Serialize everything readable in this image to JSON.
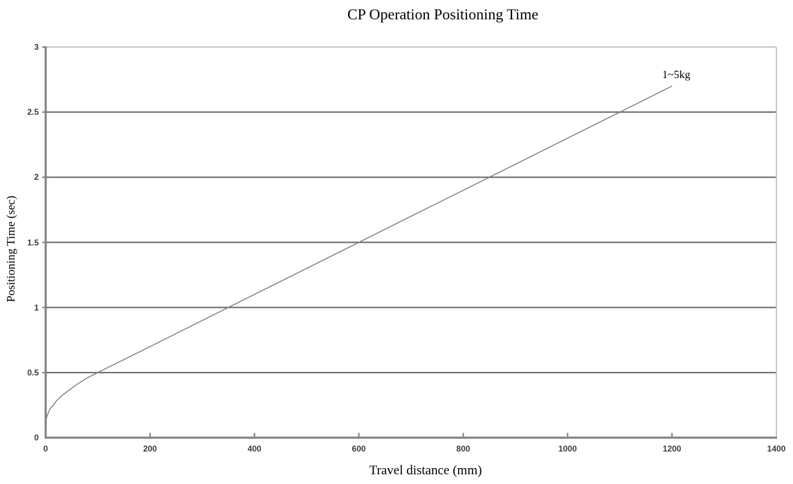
{
  "title": "CP Operation Positioning Time",
  "chart_data": {
    "type": "line",
    "title": "CP Operation Positioning Time",
    "xlabel": "Travel distance (mm)",
    "ylabel": "Positioning Time (sec)",
    "xlim": [
      0,
      1400
    ],
    "ylim": [
      0,
      3
    ],
    "x_ticks": [
      0,
      200,
      400,
      600,
      800,
      1000,
      1200,
      1400
    ],
    "y_ticks": [
      0,
      0.5,
      1,
      1.5,
      2,
      2.5,
      3
    ],
    "grid": "horizontal",
    "legend_position": "annotation at line end",
    "series": [
      {
        "name": "1~5kg",
        "color": "#7d7d7d",
        "x": [
          0,
          1,
          2,
          4,
          7,
          10,
          15,
          20,
          30,
          40,
          60,
          80,
          100,
          200,
          300,
          400,
          500,
          600,
          700,
          800,
          900,
          1000,
          1100,
          1200
        ],
        "y": [
          0.1,
          0.14,
          0.16,
          0.18,
          0.21,
          0.23,
          0.25,
          0.28,
          0.32,
          0.35,
          0.41,
          0.46,
          0.5,
          0.7,
          0.9,
          1.1,
          1.3,
          1.5,
          1.7,
          1.9,
          2.1,
          2.3,
          2.5,
          2.7
        ]
      }
    ]
  },
  "colors": {
    "gridline": "#6a6a6a",
    "axis": "#808080",
    "frame": "#c8c8c8",
    "series_line": "#7d7d7d",
    "tick_text": "#3b3b3b",
    "text": "#000000",
    "background": "#ffffff"
  }
}
